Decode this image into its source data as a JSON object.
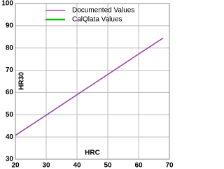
{
  "chart_data": {
    "type": "line",
    "x_label": "HRC",
    "y_label": "HR30",
    "x": [
      20,
      30,
      40,
      50,
      60,
      68
    ],
    "series": [
      {
        "name": "Documented Values",
        "color": "#b040c0",
        "values": [
          40.7,
          49.8,
          59.0,
          68.1,
          77.3,
          84.5
        ]
      },
      {
        "name": "CalQlata Values",
        "color": "#00c000",
        "values": [
          40.7,
          49.8,
          59.0,
          68.1,
          77.3,
          84.5
        ]
      }
    ],
    "xlim": [
      20,
      70
    ],
    "xticks": [
      20,
      30,
      40,
      50,
      60,
      70
    ],
    "ylim": [
      30,
      100
    ],
    "yticks": [
      30,
      40,
      50,
      60,
      70,
      80,
      90,
      100
    ],
    "grid": true
  }
}
